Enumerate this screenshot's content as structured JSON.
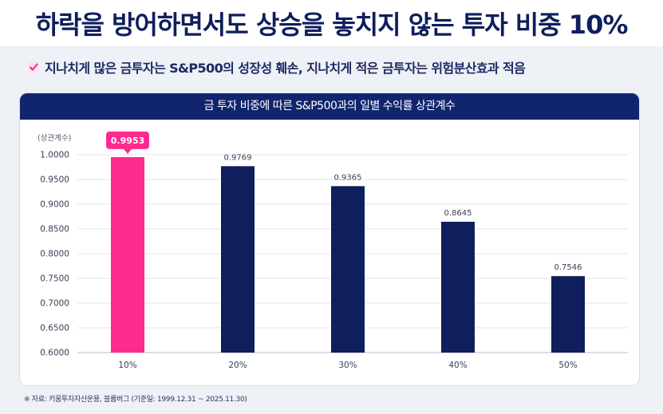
{
  "header": {
    "title": "하락을 방어하면서도 상승을 놓치지 않는 투자 비중 10%",
    "subtitle": "지나치게 많은 금투자는 S&P500의 성장성 훼손, 지나치게 적은 금투자는 위험분산효과 적음"
  },
  "card": {
    "title": "금 투자 비중에 따른  S&P500과의 일별 수익률 상관계수"
  },
  "footnote": "※ 자료: 키움투자자산운용, 블룸버그 (기준일: 1999.12.31 ~ 2025.11.30)",
  "colors": {
    "highlight": "#ff2a8f",
    "bar": "#0f1e5c",
    "header_bg": "#11256e"
  },
  "chart_data": {
    "type": "bar",
    "title": "금 투자 비중에 따른  S&P500과의 일별 수익률 상관계수",
    "ylabel": "(상관계수)",
    "xlabel": "",
    "categories": [
      "10%",
      "20%",
      "30%",
      "40%",
      "50%"
    ],
    "values": [
      0.9953,
      0.9769,
      0.9365,
      0.8645,
      0.7546
    ],
    "value_labels": [
      "0.9953",
      "0.9769",
      "0.9365",
      "0.8645",
      "0.7546"
    ],
    "highlight_index": 0,
    "ylim": [
      0.6,
      1.0
    ],
    "yticks": [
      0.6,
      0.65,
      0.7,
      0.75,
      0.8,
      0.85,
      0.9,
      0.95,
      1.0
    ],
    "ytick_labels": [
      "0.6000",
      "0.6500",
      "0.7000",
      "0.7500",
      "0.8000",
      "0.8500",
      "0.9000",
      "0.9500",
      "1.0000"
    ],
    "grid": true
  }
}
